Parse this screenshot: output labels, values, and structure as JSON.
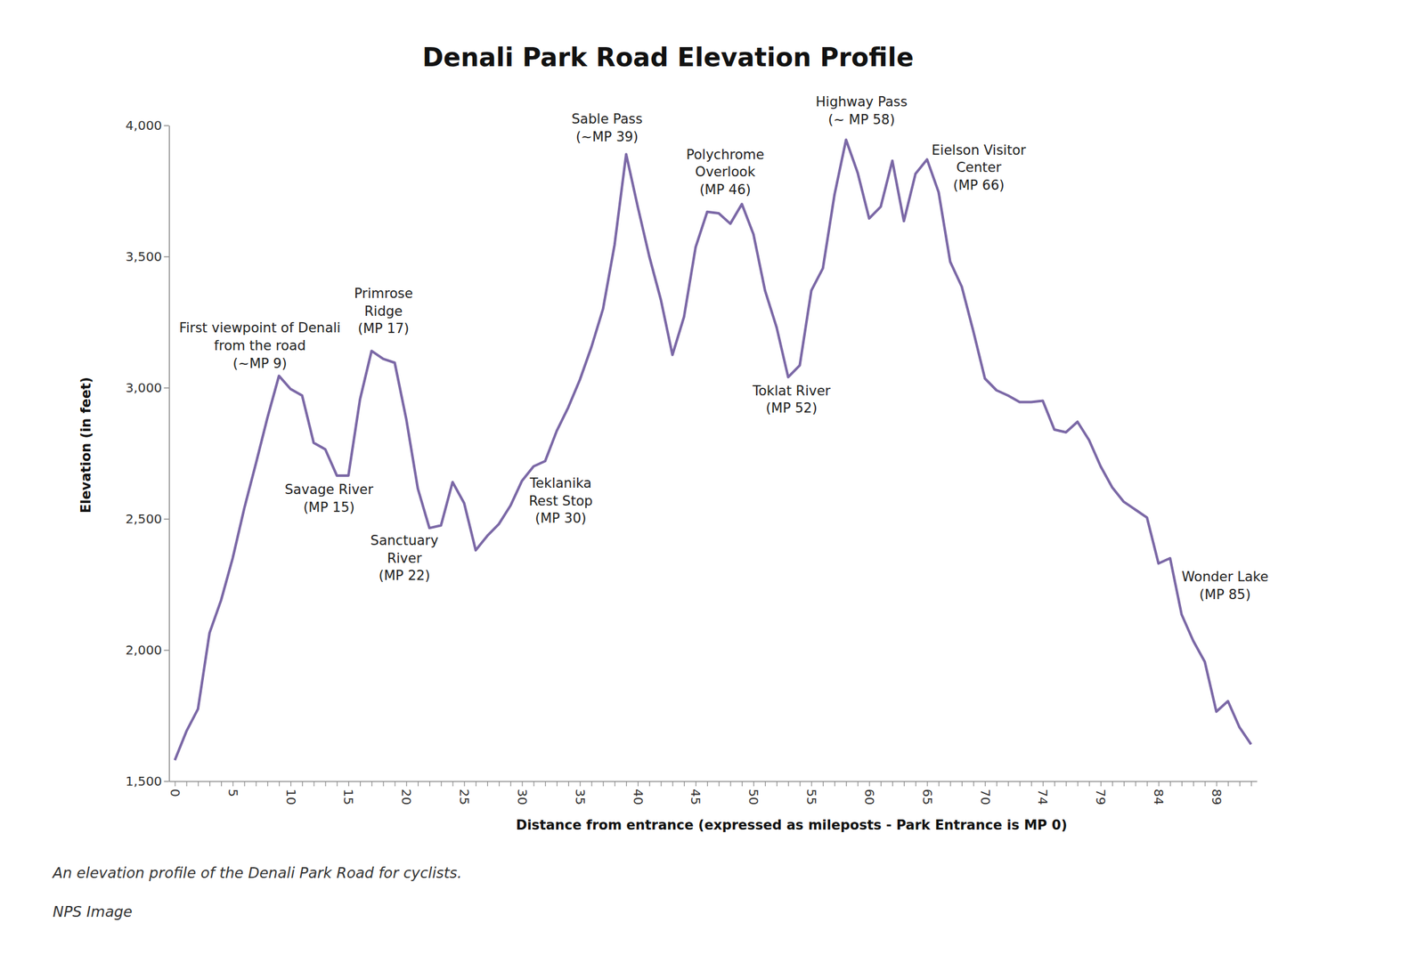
{
  "chart_data": {
    "type": "line",
    "title": "Denali Park Road Elevation Profile",
    "x_label": "Distance from entrance (expressed as mileposts - Park Entrance is MP 0)",
    "y_label": "Elevation (in feet)",
    "caption": "An elevation profile of the Denali Park Road for cyclists.",
    "source": "NPS Image",
    "color": "#7b68a6",
    "categories": [
      "0",
      null,
      null,
      null,
      null,
      "5",
      null,
      null,
      null,
      null,
      "10",
      null,
      null,
      null,
      null,
      "15",
      null,
      null,
      null,
      null,
      "20",
      null,
      null,
      null,
      null,
      "25",
      null,
      null,
      null,
      null,
      "30",
      null,
      null,
      null,
      null,
      "35",
      null,
      null,
      null,
      null,
      "40",
      null,
      null,
      null,
      null,
      "45",
      null,
      null,
      null,
      null,
      "50",
      null,
      null,
      null,
      null,
      "55",
      null,
      null,
      null,
      null,
      "60",
      null,
      null,
      null,
      null,
      "65",
      null,
      null,
      null,
      null,
      "70",
      null,
      null,
      null,
      null,
      "74",
      null,
      null,
      null,
      null,
      "79",
      null,
      null,
      null,
      null,
      "84",
      null,
      null,
      null,
      null,
      "89",
      null,
      null,
      null
    ],
    "values": [
      1580,
      1690,
      1775,
      2065,
      2190,
      2350,
      2540,
      2710,
      2885,
      3045,
      2995,
      2970,
      2790,
      2765,
      2665,
      2665,
      2955,
      3140,
      3110,
      3095,
      2880,
      2615,
      2465,
      2475,
      2640,
      2560,
      2380,
      2435,
      2480,
      2550,
      2645,
      2700,
      2720,
      2835,
      2925,
      3030,
      3155,
      3300,
      3545,
      3890,
      3690,
      3500,
      3335,
      3125,
      3270,
      3535,
      3670,
      3665,
      3625,
      3700,
      3585,
      3370,
      3230,
      3040,
      3085,
      3370,
      3455,
      3735,
      3945,
      3820,
      3645,
      3690,
      3865,
      3635,
      3815,
      3870,
      3745,
      3480,
      3385,
      3215,
      3035,
      2990,
      2970,
      2945,
      2945,
      2950,
      2840,
      2830,
      2870,
      2800,
      2700,
      2620,
      2565,
      2535,
      2505,
      2330,
      2350,
      2135,
      2035,
      1955,
      1765,
      1805,
      1705,
      1640
    ],
    "ylim": [
      1500,
      4000
    ],
    "yticks": [
      {
        "value": 1500,
        "label": "1,500"
      },
      {
        "value": 2000,
        "label": "2,000"
      },
      {
        "value": 2500,
        "label": "2,500"
      },
      {
        "value": 3000,
        "label": "3,000"
      },
      {
        "value": 3500,
        "label": "3,500"
      },
      {
        "value": 4000,
        "label": "4,000"
      }
    ],
    "grid": false,
    "annotations": [
      [
        "First viewpoint of Denali",
        "from the road",
        "(~MP 9)"
      ],
      [
        "Primrose",
        "Ridge",
        "(MP 17)"
      ],
      [
        "Savage River",
        "(MP 15)"
      ],
      [
        "Sanctuary",
        "River",
        "(MP 22)"
      ],
      [
        "Teklanika",
        "Rest Stop",
        "(MP 30)"
      ],
      [
        "Sable Pass",
        "(~MP 39)"
      ],
      [
        "Polychrome",
        "Overlook",
        "(MP 46)"
      ],
      [
        "Toklat River",
        "(MP 52)"
      ],
      [
        "Highway Pass",
        "(~ MP 58)"
      ],
      [
        "Eielson Visitor",
        "Center",
        "(MP 66)"
      ],
      [
        "Wonder Lake",
        "(MP 85)"
      ]
    ]
  }
}
